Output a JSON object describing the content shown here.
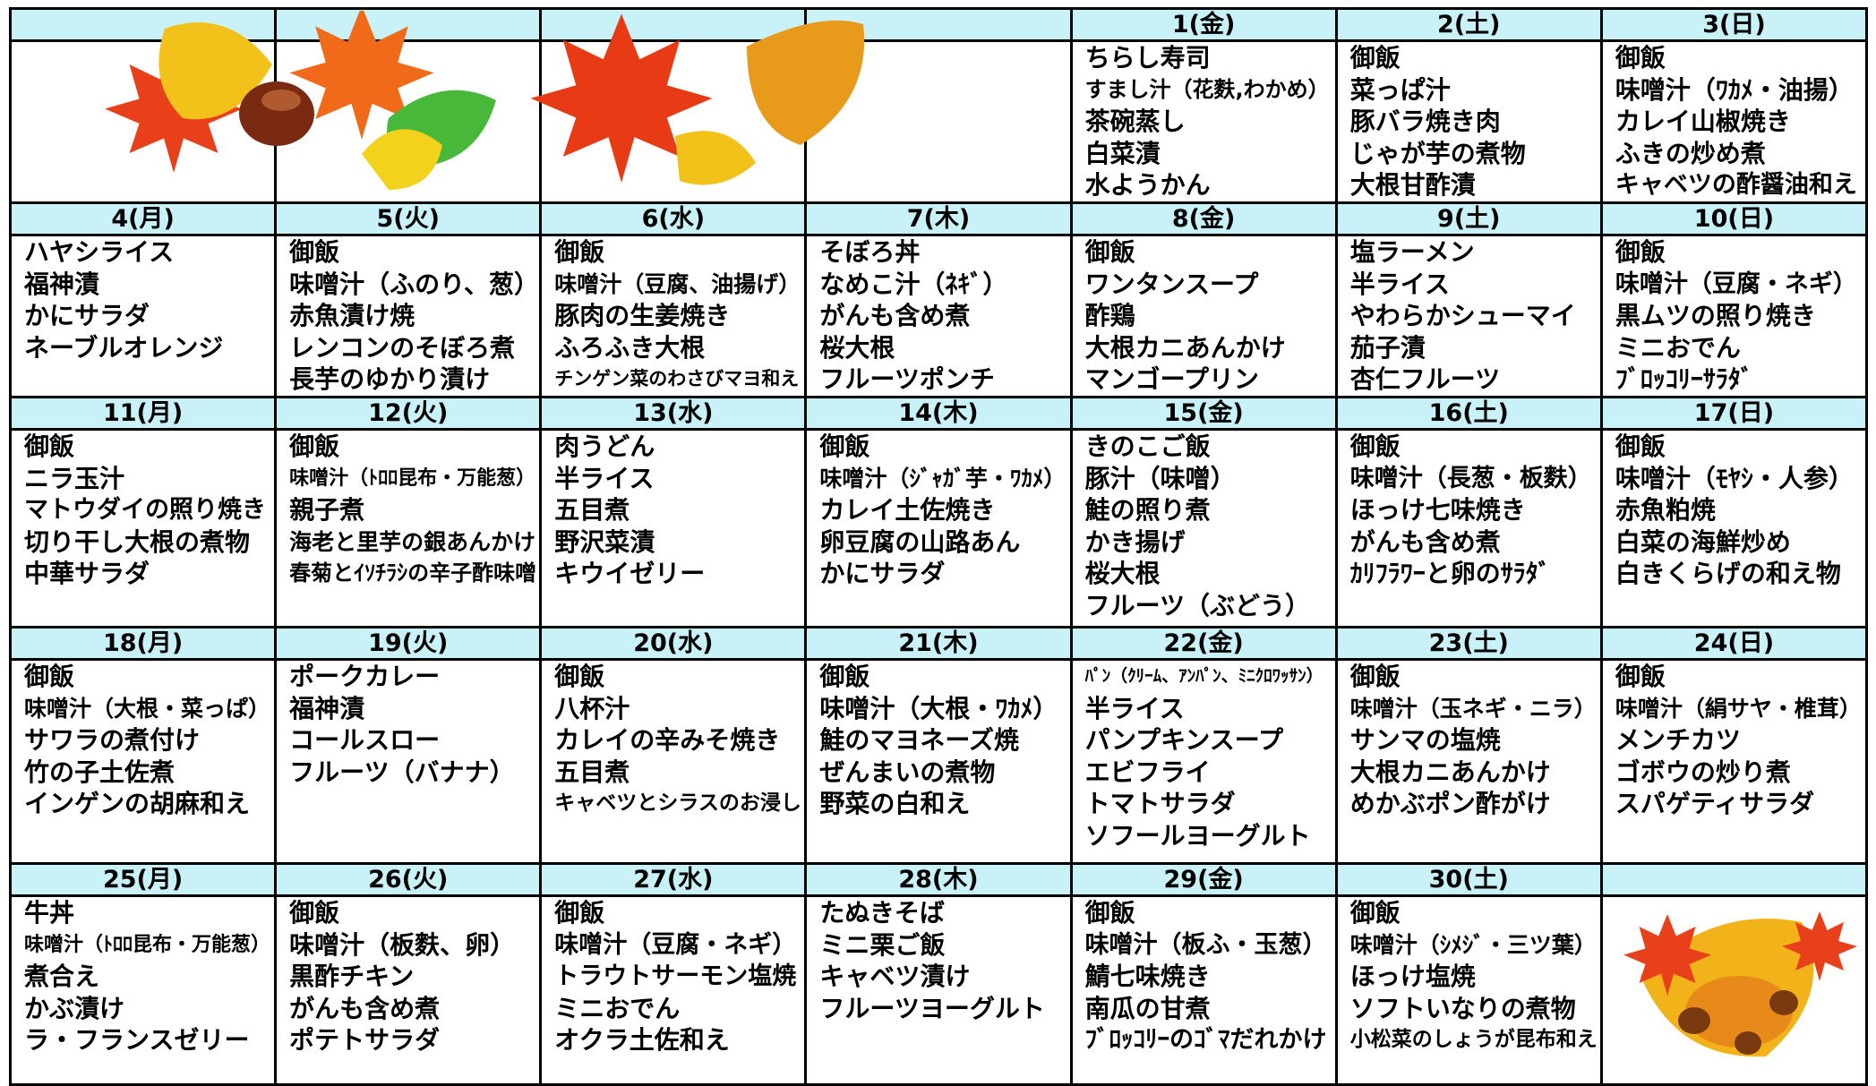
{
  "weeks": [
    {
      "days": [
        null,
        null,
        null,
        null,
        {
          "date": "1(金)",
          "items": [
            "ちらし寿司",
            "すまし汁（花麩,わかめ）",
            "茶碗蒸し",
            "白菜漬",
            "水ようかん"
          ]
        },
        {
          "date": "2(土)",
          "items": [
            "御飯",
            "菜っぱ汁",
            "豚バラ焼き肉",
            "じゃが芋の煮物",
            "大根甘酢漬"
          ]
        },
        {
          "date": "3(日)",
          "items": [
            "御飯",
            "味噌汁（ﾜｶﾒ・油揚）",
            "カレイ山椒焼き",
            "ふきの炒め煮",
            "キャベツの酢醤油和え"
          ]
        }
      ]
    },
    {
      "days": [
        {
          "date": "4(月)",
          "items": [
            "ハヤシライス",
            "福神漬",
            "かにサラダ",
            "ネーブルオレンジ"
          ]
        },
        {
          "date": "5(火)",
          "items": [
            "御飯",
            "味噌汁（ふのり、葱）",
            "赤魚漬け焼",
            "レンコンのそぼろ煮",
            "長芋のゆかり漬け"
          ]
        },
        {
          "date": "6(水)",
          "items": [
            "御飯",
            "味噌汁（豆腐、油揚げ）",
            "豚肉の生姜焼き",
            "ふろふき大根",
            "チンゲン菜のわさびマヨ和え"
          ]
        },
        {
          "date": "7(木)",
          "items": [
            "そぼろ丼",
            "なめこ汁（ﾈｷﾞ）",
            "がんも含め煮",
            "桜大根",
            "フルーツポンチ"
          ]
        },
        {
          "date": "8(金)",
          "items": [
            "御飯",
            "ワンタンスープ",
            "酢鶏",
            "大根カニあんかけ",
            "マンゴープリン"
          ]
        },
        {
          "date": "9(土)",
          "items": [
            "塩ラーメン",
            "半ライス",
            "やわらかシューマイ",
            "茄子漬",
            "杏仁フルーツ"
          ]
        },
        {
          "date": "10(日)",
          "items": [
            "御飯",
            "味噌汁（豆腐・ネギ）",
            "黒ムツの照り焼き",
            "ミニおでん",
            "ﾌﾞﾛｯｺﾘｰｻﾗﾀﾞ"
          ]
        }
      ]
    },
    {
      "days": [
        {
          "date": "11(月)",
          "items": [
            "御飯",
            "ニラ玉汁",
            "マトウダイの照り焼き",
            "切り干し大根の煮物",
            "中華サラダ"
          ]
        },
        {
          "date": "12(火)",
          "items": [
            "御飯",
            "味噌汁（ﾄﾛﾛ昆布・万能葱）",
            "親子煮",
            "海老と里芋の銀あんかけ",
            "春菊とｲｿﾁﾗｼの辛子酢味噌"
          ]
        },
        {
          "date": "13(水)",
          "items": [
            "肉うどん",
            "半ライス",
            "五目煮",
            "野沢菜漬",
            "キウイゼリー"
          ]
        },
        {
          "date": "14(木)",
          "items": [
            "御飯",
            "味噌汁（ｼﾞｬｶﾞ芋・ﾜｶﾒ）",
            "カレイ土佐焼き",
            "卵豆腐の山路あん",
            "かにサラダ"
          ]
        },
        {
          "date": "15(金)",
          "items": [
            "きのこご飯",
            "豚汁（味噌）",
            "鮭の照り煮",
            "かき揚げ",
            "桜大根",
            "フルーツ（ぶどう）"
          ]
        },
        {
          "date": "16(土)",
          "items": [
            "御飯",
            "味噌汁（長葱・板麩）",
            "ほっけ七味焼き",
            "がんも含め煮",
            "ｶﾘﾌﾗﾜｰと卵のｻﾗﾀﾞ"
          ]
        },
        {
          "date": "17(日)",
          "items": [
            "御飯",
            "味噌汁（ﾓﾔｼ・人参）",
            "赤魚粕焼",
            "白菜の海鮮炒め",
            "白きくらげの和え物"
          ]
        }
      ]
    },
    {
      "days": [
        {
          "date": "18(月)",
          "items": [
            "御飯",
            "味噌汁（大根・菜っぱ）",
            "サワラの煮付け",
            "竹の子土佐煮",
            "インゲンの胡麻和え"
          ]
        },
        {
          "date": "19(火)",
          "items": [
            "ポークカレー",
            "福神漬",
            "コールスロー",
            "フルーツ（バナナ）"
          ]
        },
        {
          "date": "20(水)",
          "items": [
            "御飯",
            "八杯汁",
            "カレイの辛みそ焼き",
            "五目煮",
            "キャベツとシラスのお浸し"
          ]
        },
        {
          "date": "21(木)",
          "items": [
            "御飯",
            "味噌汁（大根・ﾜｶﾒ）",
            "鮭のマヨネーズ焼",
            "ぜんまいの煮物",
            "野菜の白和え"
          ]
        },
        {
          "date": "22(金)",
          "items": [
            "ﾊﾟﾝ（ｸﾘｰﾑ、ｱﾝﾊﾟﾝ、ﾐﾆｸﾛﾜｯｻﾝ）",
            "半ライス",
            "パンプキンスープ",
            "エビフライ",
            "トマトサラダ",
            "ソフールヨーグルト"
          ]
        },
        {
          "date": "23(土)",
          "items": [
            "御飯",
            "味噌汁（玉ネギ・ニラ）",
            "サンマの塩焼",
            "大根カニあんかけ",
            "めかぶポン酢がけ"
          ]
        },
        {
          "date": "24(日)",
          "items": [
            "御飯",
            "味噌汁（絹サヤ・椎茸）",
            "メンチカツ",
            "ゴボウの炒り煮",
            "スパゲティサラダ"
          ]
        }
      ]
    },
    {
      "days": [
        {
          "date": "25(月)",
          "items": [
            "牛丼",
            "味噌汁（ﾄﾛﾛ昆布・万能葱）",
            "煮合え",
            "かぶ漬け",
            "ラ・フランスゼリー"
          ]
        },
        {
          "date": "26(火)",
          "items": [
            "御飯",
            "味噌汁（板麩、卵）",
            "黒酢チキン",
            "がんも含め煮",
            "ポテトサラダ"
          ]
        },
        {
          "date": "27(水)",
          "items": [
            "御飯",
            "味噌汁（豆腐・ネギ）",
            "トラウトサーモン塩焼",
            "ミニおでん",
            "オクラ土佐和え"
          ]
        },
        {
          "date": "28(木)",
          "items": [
            "たぬきそば",
            "ミニ栗ご飯",
            "キャベツ漬け",
            "フルーツヨーグルト"
          ]
        },
        {
          "date": "29(金)",
          "items": [
            "御飯",
            "味噌汁（板ふ・玉葱）",
            "鯖七味焼き",
            "南瓜の甘煮",
            "ﾌﾞﾛｯｺﾘｰのｺﾞﾏだれかけ"
          ]
        },
        {
          "date": "30(土)",
          "items": [
            "御飯",
            "味噌汁（ｼﾒｼﾞ・三ツ葉）",
            "ほっけ塩焼",
            "ソフトいなりの煮物",
            "小松菜のしょうが昆布和え"
          ]
        },
        null
      ]
    }
  ]
}
